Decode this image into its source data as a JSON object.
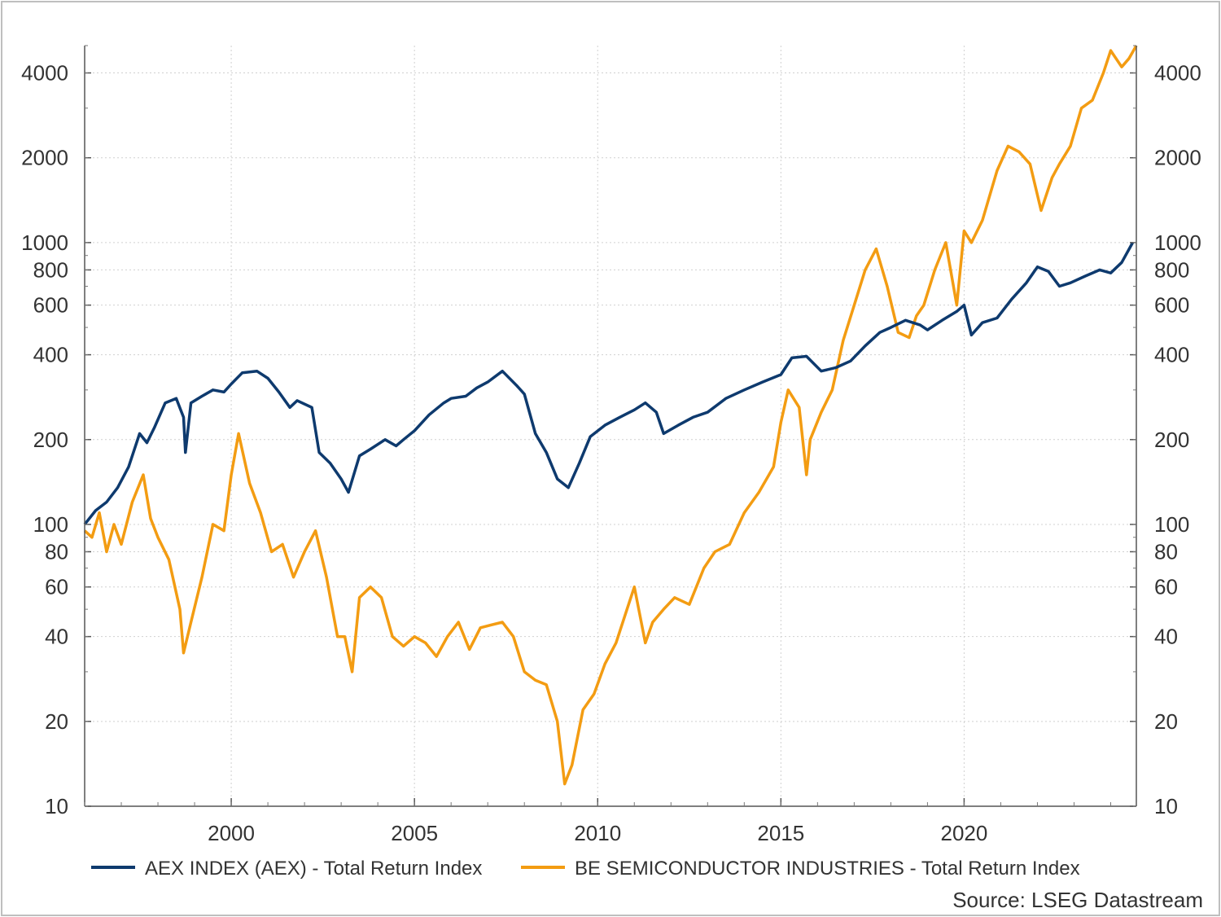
{
  "chart_data": {
    "type": "line",
    "title": "",
    "xlabel": "",
    "ylabel": "",
    "y_scale": "log",
    "xlim": [
      1996.0,
      2024.7
    ],
    "ylim": [
      10,
      5000
    ],
    "x_ticks": [
      "2000",
      "2005",
      "2010",
      "2015",
      "2020"
    ],
    "y_ticks": [
      "10",
      "20",
      "40",
      "60",
      "80",
      "100",
      "200",
      "400",
      "600",
      "800",
      "1000",
      "2000",
      "4000"
    ],
    "grid": true,
    "legend_position": "bottom",
    "source": "Source: LSEG Datastream",
    "colors": {
      "aex": "#0e3a6e",
      "besi": "#f39c12"
    },
    "series": [
      {
        "name": "AEX INDEX (AEX) - Total Return Index",
        "x": [
          1996.0,
          1996.3,
          1996.6,
          1996.9,
          1997.2,
          1997.5,
          1997.7,
          1997.9,
          1998.2,
          1998.5,
          1998.7,
          1998.75,
          1998.9,
          1999.2,
          1999.5,
          1999.8,
          2000.0,
          2000.3,
          2000.7,
          2001.0,
          2001.3,
          2001.6,
          2001.8,
          2002.2,
          2002.4,
          2002.7,
          2003.0,
          2003.2,
          2003.5,
          2003.8,
          2004.2,
          2004.5,
          2004.7,
          2005.0,
          2005.4,
          2005.8,
          2006.0,
          2006.4,
          2006.7,
          2007.0,
          2007.4,
          2007.8,
          2008.0,
          2008.3,
          2008.6,
          2008.9,
          2009.2,
          2009.5,
          2009.8,
          2010.2,
          2010.6,
          2011.0,
          2011.3,
          2011.6,
          2011.8,
          2012.2,
          2012.6,
          2013.0,
          2013.5,
          2014.0,
          2014.5,
          2015.0,
          2015.3,
          2015.7,
          2016.1,
          2016.5,
          2016.9,
          2017.3,
          2017.7,
          2018.0,
          2018.4,
          2018.8,
          2019.0,
          2019.4,
          2019.8,
          2020.0,
          2020.2,
          2020.5,
          2020.9,
          2021.3,
          2021.7,
          2022.0,
          2022.3,
          2022.6,
          2022.9,
          2023.3,
          2023.7,
          2024.0,
          2024.3,
          2024.6
        ],
        "values": [
          100,
          112,
          120,
          135,
          160,
          210,
          195,
          220,
          270,
          280,
          240,
          180,
          270,
          285,
          300,
          295,
          315,
          345,
          350,
          330,
          295,
          260,
          275,
          260,
          180,
          165,
          145,
          130,
          175,
          185,
          200,
          190,
          200,
          215,
          245,
          270,
          280,
          285,
          305,
          320,
          350,
          310,
          290,
          210,
          180,
          145,
          135,
          165,
          205,
          225,
          240,
          255,
          270,
          250,
          210,
          225,
          240,
          250,
          280,
          300,
          320,
          340,
          390,
          395,
          350,
          360,
          380,
          430,
          480,
          500,
          530,
          510,
          490,
          530,
          570,
          600,
          470,
          520,
          540,
          630,
          720,
          820,
          790,
          700,
          720,
          760,
          800,
          780,
          850,
          1000
        ]
      },
      {
        "name": "BE SEMICONDUCTOR INDUSTRIES - Total Return Index",
        "x": [
          1996.0,
          1996.2,
          1996.4,
          1996.6,
          1996.8,
          1997.0,
          1997.3,
          1997.6,
          1997.8,
          1998.0,
          1998.3,
          1998.6,
          1998.7,
          1998.9,
          1999.2,
          1999.5,
          1999.8,
          2000.0,
          2000.2,
          2000.5,
          2000.8,
          2001.1,
          2001.4,
          2001.7,
          2002.0,
          2002.3,
          2002.6,
          2002.9,
          2003.1,
          2003.3,
          2003.5,
          2003.8,
          2004.1,
          2004.4,
          2004.7,
          2005.0,
          2005.3,
          2005.6,
          2005.9,
          2006.2,
          2006.5,
          2006.8,
          2007.1,
          2007.4,
          2007.7,
          2008.0,
          2008.3,
          2008.6,
          2008.9,
          2009.1,
          2009.3,
          2009.6,
          2009.9,
          2010.2,
          2010.5,
          2010.8,
          2011.0,
          2011.3,
          2011.5,
          2011.8,
          2012.1,
          2012.5,
          2012.9,
          2013.2,
          2013.6,
          2014.0,
          2014.4,
          2014.8,
          2015.0,
          2015.2,
          2015.5,
          2015.7,
          2015.8,
          2016.1,
          2016.4,
          2016.7,
          2017.0,
          2017.3,
          2017.6,
          2017.9,
          2018.2,
          2018.5,
          2018.7,
          2018.9,
          2019.2,
          2019.5,
          2019.8,
          2020.0,
          2020.2,
          2020.5,
          2020.9,
          2021.2,
          2021.5,
          2021.8,
          2022.1,
          2022.4,
          2022.6,
          2022.9,
          2023.2,
          2023.5,
          2023.8,
          2024.0,
          2024.3,
          2024.5,
          2024.7
        ],
        "values": [
          95,
          90,
          110,
          80,
          100,
          85,
          120,
          150,
          105,
          90,
          75,
          50,
          35,
          45,
          65,
          100,
          95,
          150,
          210,
          140,
          110,
          80,
          85,
          65,
          80,
          95,
          65,
          40,
          40,
          30,
          55,
          60,
          55,
          40,
          37,
          40,
          38,
          34,
          40,
          45,
          36,
          43,
          44,
          45,
          40,
          30,
          28,
          27,
          20,
          12,
          14,
          22,
          25,
          32,
          38,
          50,
          60,
          38,
          45,
          50,
          55,
          52,
          70,
          80,
          85,
          110,
          130,
          160,
          230,
          300,
          260,
          150,
          200,
          250,
          300,
          450,
          600,
          800,
          950,
          700,
          480,
          460,
          550,
          600,
          800,
          1000,
          600,
          1100,
          1000,
          1200,
          1800,
          2200,
          2100,
          1900,
          1300,
          1700,
          1900,
          2200,
          3000,
          3200,
          4000,
          4800,
          4200,
          4500,
          5000
        ]
      }
    ]
  }
}
